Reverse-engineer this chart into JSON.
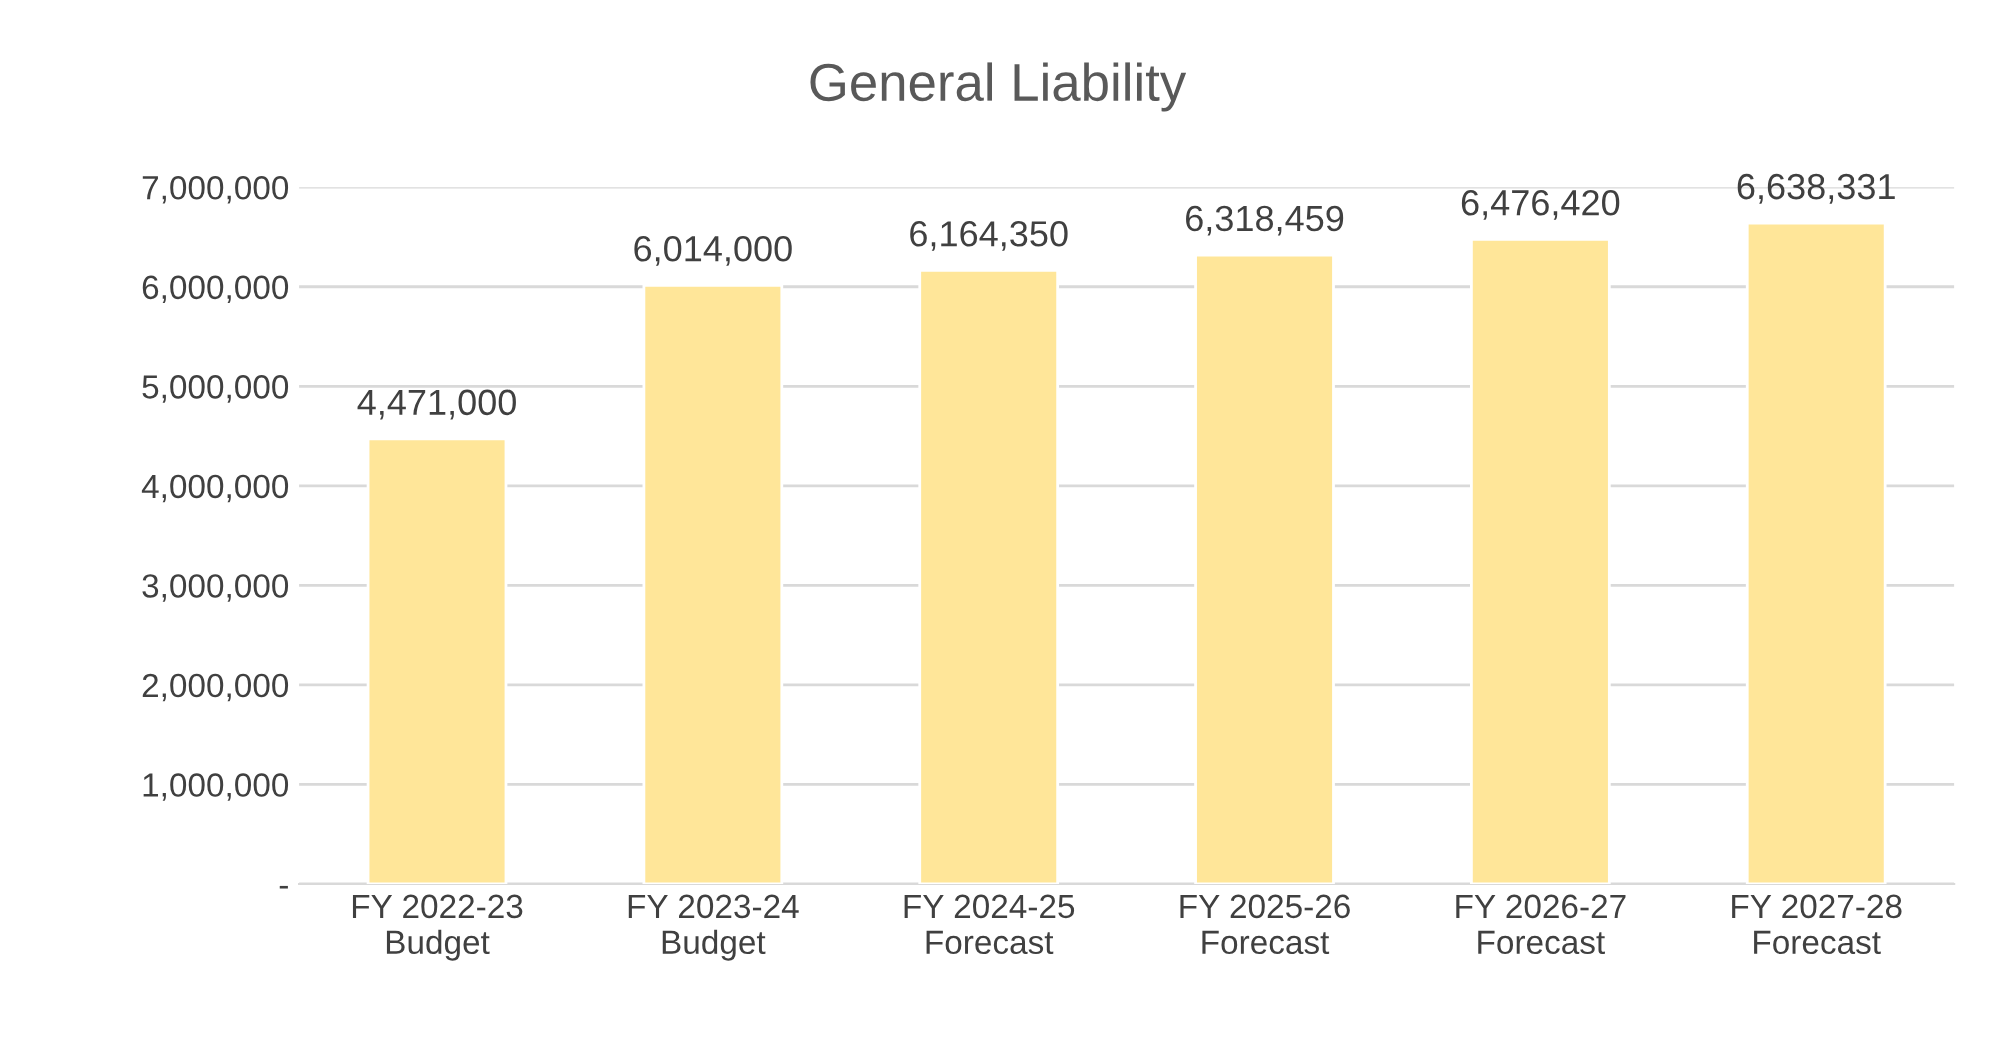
{
  "chart_data": {
    "type": "bar",
    "title": "General Liability",
    "categories": [
      "FY 2022-23\nBudget",
      "FY 2023-24\nBudget",
      "FY 2024-25\nForecast",
      "FY 2025-26\nForecast",
      "FY 2026-27\nForecast",
      "FY 2027-28\nForecast"
    ],
    "values": [
      4471000,
      6014000,
      6164350,
      6318459,
      6476420,
      6638331
    ],
    "value_labels": [
      "4,471,000",
      "6,014,000",
      "6,164,350",
      "6,318,459",
      "6,476,420",
      "6,638,331"
    ],
    "color": "#ffe699",
    "ylim": [
      0,
      7000000
    ],
    "yticks": [
      {
        "value": 0,
        "label": "-"
      },
      {
        "value": 1000000,
        "label": "1,000,000"
      },
      {
        "value": 2000000,
        "label": "2,000,000"
      },
      {
        "value": 3000000,
        "label": "3,000,000"
      },
      {
        "value": 4000000,
        "label": "4,000,000"
      },
      {
        "value": 5000000,
        "label": "5,000,000"
      },
      {
        "value": 6000000,
        "label": "6,000,000"
      },
      {
        "value": 7000000,
        "label": "7,000,000"
      }
    ],
    "grid": "y",
    "legend": false
  }
}
